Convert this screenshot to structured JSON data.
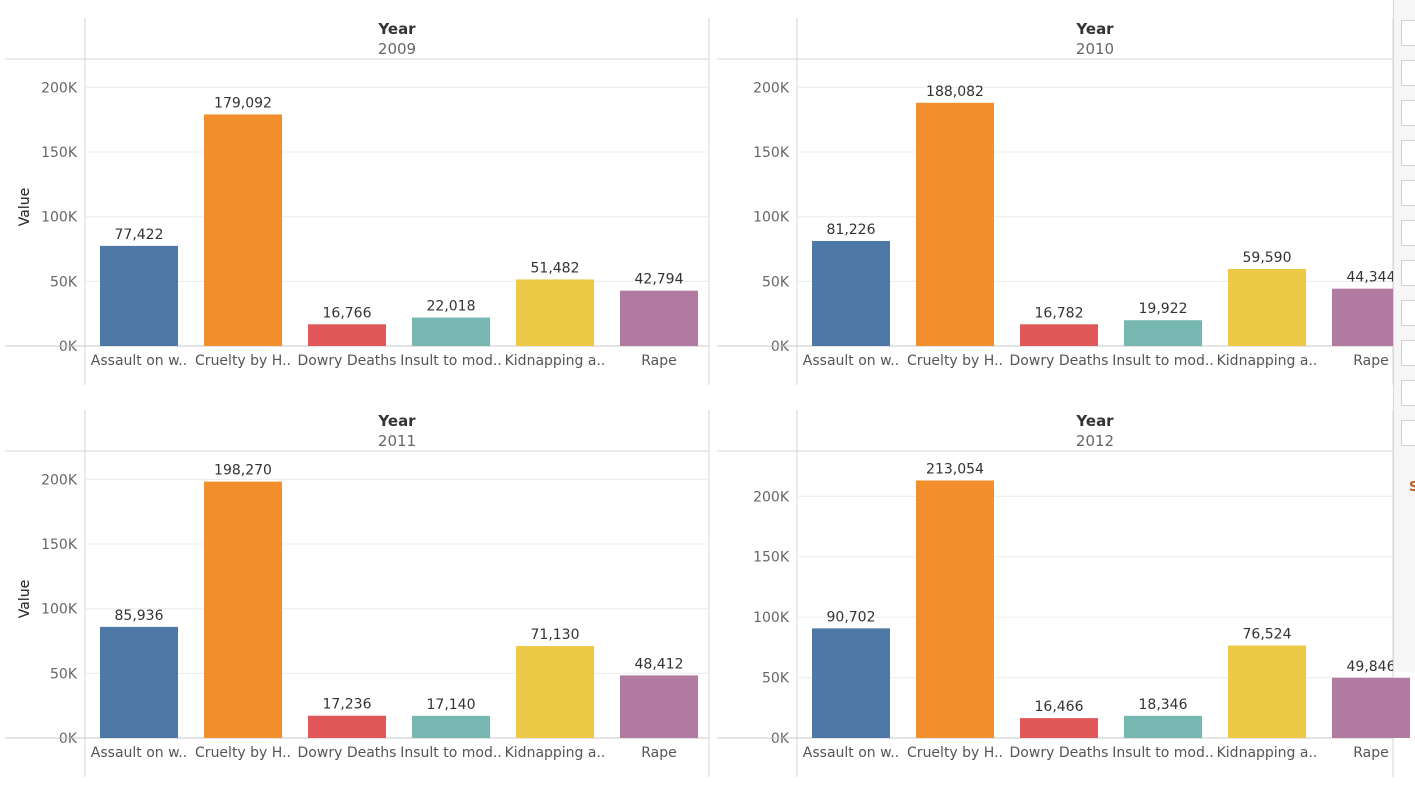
{
  "chart_data": [
    {
      "type": "bar",
      "header_title": "Year",
      "year": "2009",
      "ylabel": "Value",
      "ylim": [
        0,
        215000
      ],
      "yticks": [
        0,
        50000,
        100000,
        150000,
        200000
      ],
      "ytick_labels": [
        "0K",
        "50K",
        "100K",
        "150K",
        "200K"
      ],
      "categories": [
        "Assault on w..",
        "Cruelty by H..",
        "Dowry Deaths",
        "Insult to mod..",
        "Kidnapping a..",
        "Rape"
      ],
      "values": [
        77422,
        179092,
        16766,
        22018,
        51482,
        42794
      ],
      "value_labels": [
        "77,422",
        "179,092",
        "16,766",
        "22,018",
        "51,482",
        "42,794"
      ]
    },
    {
      "type": "bar",
      "header_title": "Year",
      "year": "2010",
      "ylabel": "Value",
      "ylim": [
        0,
        215000
      ],
      "yticks": [
        0,
        50000,
        100000,
        150000,
        200000
      ],
      "ytick_labels": [
        "0K",
        "50K",
        "100K",
        "150K",
        "200K"
      ],
      "categories": [
        "Assault on w..",
        "Cruelty by H..",
        "Dowry Deaths",
        "Insult to mod..",
        "Kidnapping a..",
        "Rape"
      ],
      "values": [
        81226,
        188082,
        16782,
        19922,
        59590,
        44344
      ],
      "value_labels": [
        "81,226",
        "188,082",
        "16,782",
        "19,922",
        "59,590",
        "44,344"
      ]
    },
    {
      "type": "bar",
      "header_title": "Year",
      "year": "2011",
      "ylabel": "Value",
      "ylim": [
        0,
        215000
      ],
      "yticks": [
        0,
        50000,
        100000,
        150000,
        200000
      ],
      "ytick_labels": [
        "0K",
        "50K",
        "100K",
        "150K",
        "200K"
      ],
      "categories": [
        "Assault on w..",
        "Cruelty by H..",
        "Dowry Deaths",
        "Insult to mod..",
        "Kidnapping a..",
        "Rape"
      ],
      "values": [
        85936,
        198270,
        17236,
        17140,
        71130,
        48412
      ],
      "value_labels": [
        "85,936",
        "198,270",
        "17,236",
        "17,140",
        "71,130",
        "48,412"
      ]
    },
    {
      "type": "bar",
      "header_title": "Year",
      "year": "2012",
      "ylabel": "Value",
      "ylim": [
        0,
        230000
      ],
      "yticks": [
        0,
        50000,
        100000,
        150000,
        200000
      ],
      "ytick_labels": [
        "0K",
        "50K",
        "100K",
        "150K",
        "200K"
      ],
      "categories": [
        "Assault on w..",
        "Cruelty by H..",
        "Dowry Deaths",
        "Insult to mod..",
        "Kidnapping a..",
        "Rape"
      ],
      "values": [
        90702,
        213054,
        16466,
        18346,
        76524,
        49846
      ],
      "value_labels": [
        "90,702",
        "213,054",
        "16,466",
        "18,346",
        "76,524",
        "49,846"
      ]
    }
  ],
  "colors": [
    "#4e79a7",
    "#f28e2b",
    "#e15759",
    "#76b7b2",
    "#edc948",
    "#b07aa1"
  ],
  "side_panel": {
    "glyph": "S"
  }
}
